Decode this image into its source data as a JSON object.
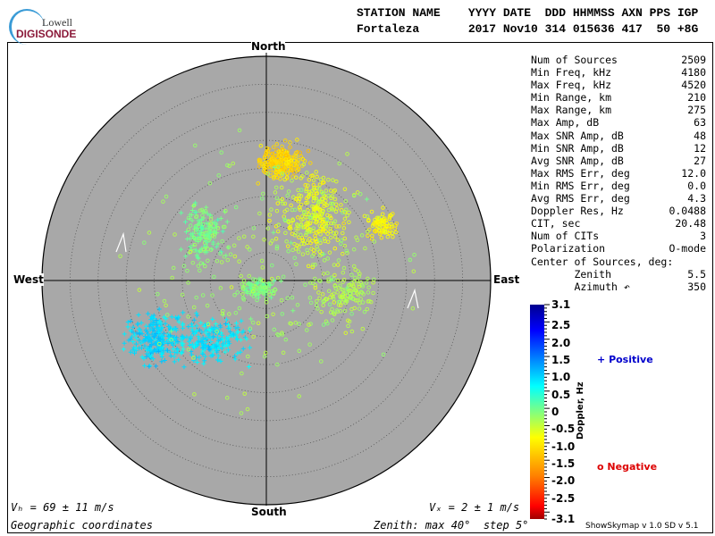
{
  "logo": {
    "line1": "Lowell",
    "line2": "DIGISONDE"
  },
  "header": {
    "labels": "STATION NAME    YYYY DATE  DDD HHMMSS AXN PPS IGP",
    "values": "Fortaleza       2017 Nov10 314 015636 417  50 +8G"
  },
  "directions": {
    "north": "North",
    "south": "South",
    "east": "East",
    "west": "West"
  },
  "stats": [
    {
      "label": "Num of Sources",
      "value": "2509"
    },
    {
      "label": "Min Freq, kHz",
      "value": "4180"
    },
    {
      "label": "Max Freq, kHz",
      "value": "4520"
    },
    {
      "label": "Min Range, km",
      "value": "210"
    },
    {
      "label": "Max Range, km",
      "value": "275"
    },
    {
      "label": "Max Amp, dB",
      "value": "63"
    },
    {
      "label": "Max SNR Amp, dB",
      "value": "48"
    },
    {
      "label": "Min SNR Amp, dB",
      "value": "12"
    },
    {
      "label": "Avg SNR Amp, dB",
      "value": "27"
    },
    {
      "label": "Max RMS Err, deg",
      "value": "12.0"
    },
    {
      "label": "Min RMS Err, deg",
      "value": "0.0"
    },
    {
      "label": "Avg RMS Err, deg",
      "value": "4.3"
    },
    {
      "label": "Doppler Res, Hz",
      "value": "0.0488"
    },
    {
      "label": "CIT, sec",
      "value": "20.48"
    },
    {
      "label": "Num of CITs",
      "value": "3"
    },
    {
      "label": "Polarization",
      "value": "O-mode"
    },
    {
      "label": "Center of Sources, deg:",
      "value": ""
    },
    {
      "label": "       Zenith",
      "value": "5.5"
    },
    {
      "label": "       Azimuth ↶",
      "value": "350"
    }
  ],
  "bottom": {
    "vh": "Vₕ = 69 ± 11 m/s",
    "vz": "Vₓ = 2 ± 1 m/s",
    "coords": "Geographic coordinates",
    "zenith": "Zenith: max 40°  step 5°",
    "version": "ShowSkymap v 1.0   SD v 5.1"
  },
  "legend": {
    "positive": "Positive",
    "negative": "Negative",
    "positive_symbol": "+",
    "negative_symbol": "o",
    "positive_color": "#0000cc",
    "negative_color": "#dd0000"
  },
  "colorbar": {
    "title": "Doppler, Hz",
    "ticks": [
      "3.1",
      "2.5",
      "2.0",
      "1.5",
      "1.0",
      "0.5",
      "0",
      "-0.5",
      "-1.0",
      "-1.5",
      "-2.0",
      "-2.5",
      "-3.1"
    ],
    "min": -3.1,
    "max": 3.1
  },
  "chart_data": {
    "type": "scatter",
    "projection": "polar skymap",
    "radial_axis": {
      "quantity": "zenith angle, deg",
      "max": 40,
      "step": 5
    },
    "background_color": "#a8a8a8",
    "color_scale": {
      "quantity": "Doppler, Hz",
      "range": [
        -3.1,
        3.1
      ],
      "colormap": "jet reversed"
    },
    "num_sources": 2509
  }
}
